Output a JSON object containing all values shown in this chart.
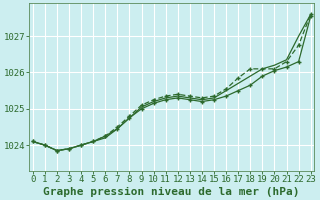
{
  "title": "Graphe pression niveau de la mer (hPa)",
  "bg_color": "#cceef0",
  "grid_color": "#b0d8dc",
  "line_color": "#2d6a2d",
  "x_ticks": [
    0,
    1,
    2,
    3,
    4,
    5,
    6,
    7,
    8,
    9,
    10,
    11,
    12,
    13,
    14,
    15,
    16,
    17,
    18,
    19,
    20,
    21,
    22,
    23
  ],
  "y_ticks": [
    1024,
    1025,
    1026,
    1027
  ],
  "ylim": [
    1023.3,
    1027.9
  ],
  "xlim": [
    -0.3,
    23.3
  ],
  "series_smooth": [
    1024.1,
    1024.0,
    1023.85,
    1023.9,
    1024.0,
    1024.1,
    1024.2,
    1024.45,
    1024.75,
    1025.05,
    1025.2,
    1025.3,
    1025.35,
    1025.3,
    1025.25,
    1025.3,
    1025.5,
    1025.7,
    1025.9,
    1026.1,
    1026.2,
    1026.35,
    1027.0,
    1027.6
  ],
  "series_marker": [
    1024.1,
    1024.0,
    1023.85,
    1023.9,
    1024.0,
    1024.1,
    1024.25,
    1024.45,
    1024.75,
    1025.0,
    1025.15,
    1025.25,
    1025.3,
    1025.25,
    1025.2,
    1025.25,
    1025.35,
    1025.5,
    1025.65,
    1025.9,
    1026.05,
    1026.15,
    1026.3,
    1027.55
  ],
  "series_high": [
    1024.1,
    1024.0,
    1023.85,
    1023.9,
    1024.0,
    1024.1,
    1024.25,
    1024.5,
    1024.8,
    1025.1,
    1025.25,
    1025.35,
    1025.4,
    1025.35,
    1025.3,
    1025.35,
    1025.55,
    1025.85,
    1026.1,
    1026.1,
    1026.1,
    1026.3,
    1026.75,
    1027.6
  ],
  "title_fontsize": 8,
  "tick_fontsize": 6.5
}
